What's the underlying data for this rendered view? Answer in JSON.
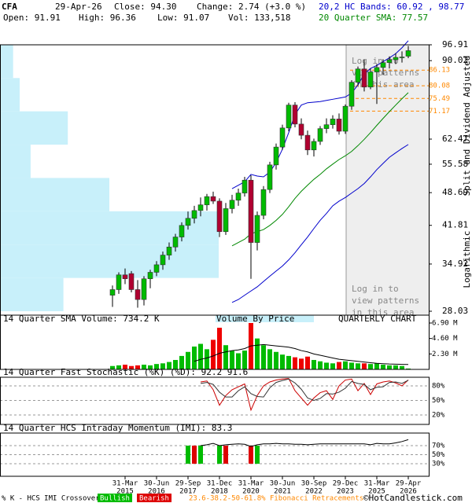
{
  "chart_data": [
    {
      "type": "candlestick",
      "header": {
        "symbol": "CFA",
        "date": "29-Apr-26",
        "close": "Close: 94.30",
        "change": "Change: 2.74 (+3.0 %)",
        "open": "Open: 91.91",
        "high": "High: 96.36",
        "low": "Low: 91.07",
        "volume": "Vol: 133,518",
        "bands": "20,2 HC Bands: 60.92 , 98.77",
        "sma": "20 Quarter SMA: 77.57"
      },
      "side_labels": [
        "Split and Dividend Adjusted",
        "Logarithmic"
      ],
      "notice_lines": [
        "Log in to",
        "view patterns",
        "in this area"
      ],
      "categories": [
        null,
        null,
        "31-Mar",
        null,
        null,
        null,
        null,
        "30-Jun",
        null,
        null,
        null,
        null,
        "29-Sep",
        null,
        null,
        null,
        null,
        "31-Dec",
        null,
        null,
        null,
        null,
        "31-Mar",
        null,
        null,
        null,
        null,
        "30-Jun",
        null,
        null,
        null,
        null,
        "30-Sep",
        null,
        null,
        null,
        null,
        "29-Dec",
        null,
        null,
        null,
        null,
        "31-Mar",
        null,
        null,
        null,
        null,
        "29-Apr"
      ],
      "category_years": [
        null,
        null,
        "2015",
        null,
        null,
        null,
        null,
        "2016",
        null,
        null,
        null,
        null,
        "2017",
        null,
        null,
        null,
        null,
        "2018",
        null,
        null,
        null,
        null,
        "2020",
        null,
        null,
        null,
        null,
        "2021",
        null,
        null,
        null,
        null,
        "2022",
        null,
        null,
        null,
        null,
        "2023",
        null,
        null,
        null,
        null,
        "2025",
        null,
        null,
        null,
        null,
        "2026"
      ],
      "open": [
        30.2,
        31.0,
        33.2,
        33.4,
        31.0,
        29.6,
        32.6,
        33.6,
        34.8,
        36.4,
        37.8,
        39.6,
        41.8,
        43.2,
        44.8,
        46.0,
        47.8,
        46.8,
        40.6,
        45.2,
        47.0,
        48.6,
        51.6,
        38.6,
        43.8,
        49.4,
        55.4,
        60.2,
        65.8,
        73.2,
        67.0,
        63.6,
        59.4,
        61.8,
        65.6,
        66.8,
        68.6,
        64.8,
        72.8,
        81.4,
        86.6,
        79.6,
        85.4,
        87.2,
        89.2,
        90.4,
        91.4,
        91.91
      ],
      "high": [
        31.6,
        33.6,
        34.2,
        33.8,
        32.4,
        33.0,
        34.0,
        35.4,
        37.0,
        38.6,
        40.2,
        42.4,
        44.6,
        45.8,
        47.6,
        48.4,
        48.9,
        47.4,
        46.4,
        48.2,
        49.6,
        52.4,
        52.8,
        44.6,
        50.2,
        56.2,
        61.2,
        66.8,
        74.0,
        74.2,
        68.8,
        65.0,
        62.6,
        66.4,
        68.8,
        69.8,
        70.4,
        73.4,
        82.2,
        87.6,
        90.4,
        86.8,
        88.6,
        90.6,
        91.8,
        93.2,
        94.0,
        96.36
      ],
      "low": [
        28.6,
        30.4,
        31.8,
        30.6,
        28.5,
        28.8,
        31.2,
        33.0,
        34.0,
        35.6,
        37.0,
        38.8,
        41.0,
        42.2,
        43.6,
        44.8,
        46.2,
        39.6,
        40.0,
        44.2,
        45.8,
        47.8,
        32.6,
        37.2,
        43.0,
        48.6,
        54.2,
        59.4,
        64.8,
        66.0,
        62.4,
        58.0,
        57.6,
        60.8,
        64.2,
        65.6,
        63.8,
        64.0,
        71.6,
        80.2,
        78.0,
        78.8,
        73.6,
        84.2,
        86.8,
        88.6,
        89.2,
        91.07
      ],
      "close": [
        31.0,
        33.2,
        32.6,
        31.0,
        29.6,
        32.6,
        33.6,
        34.8,
        36.4,
        37.8,
        39.6,
        41.8,
        43.2,
        44.8,
        46.0,
        47.8,
        46.8,
        40.6,
        45.2,
        47.0,
        48.6,
        51.6,
        38.6,
        43.8,
        49.4,
        55.4,
        60.2,
        65.8,
        73.2,
        67.0,
        63.6,
        59.4,
        61.8,
        65.6,
        66.8,
        68.6,
        64.8,
        72.8,
        81.4,
        86.6,
        79.6,
        85.4,
        87.2,
        89.2,
        90.4,
        91.4,
        91.56,
        94.3
      ],
      "up_color": "#00bb00",
      "down_color": "#b00030",
      "upper_band": {
        "color": "#0000cc",
        "values": [
          null,
          null,
          null,
          null,
          null,
          null,
          null,
          null,
          null,
          null,
          null,
          null,
          null,
          null,
          null,
          null,
          null,
          null,
          null,
          49.6,
          50.4,
          51.2,
          53.0,
          52.6,
          52.4,
          53.6,
          56.0,
          59.6,
          64.4,
          70.0,
          73.2,
          74.0,
          74.2,
          74.4,
          74.8,
          75.2,
          75.6,
          76.0,
          77.4,
          80.4,
          84.6,
          86.8,
          88.0,
          89.6,
          91.2,
          93.0,
          95.6,
          98.77
        ]
      },
      "lower_band": {
        "color": "#0000cc",
        "values": [
          null,
          null,
          null,
          null,
          null,
          null,
          null,
          null,
          null,
          null,
          null,
          null,
          null,
          null,
          null,
          null,
          null,
          null,
          null,
          29.2,
          29.6,
          30.2,
          30.8,
          31.4,
          32.2,
          33.0,
          33.8,
          34.6,
          35.6,
          36.8,
          38.2,
          39.6,
          41.2,
          42.8,
          44.2,
          45.8,
          46.8,
          47.6,
          48.6,
          49.6,
          50.8,
          52.4,
          54.2,
          55.8,
          57.4,
          58.6,
          59.8,
          60.92
        ]
      },
      "sma": {
        "color": "#008800",
        "values": [
          null,
          null,
          null,
          null,
          null,
          null,
          null,
          null,
          null,
          null,
          null,
          null,
          null,
          null,
          null,
          null,
          null,
          null,
          null,
          38.0,
          38.6,
          39.2,
          40.2,
          40.6,
          41.0,
          41.8,
          42.8,
          44.0,
          45.6,
          47.4,
          49.0,
          50.4,
          51.8,
          53.0,
          54.4,
          55.6,
          56.8,
          57.8,
          59.0,
          60.6,
          62.4,
          64.4,
          66.6,
          68.8,
          71.0,
          73.2,
          75.4,
          77.57
        ]
      },
      "volume_by_price": {
        "name": "Volume By Price",
        "color": "#c8f0fa",
        "bins": [
          28.03,
          32.73,
          38.22,
          44.64,
          52.13,
          60.88,
          71.09,
          83.02,
          96.91
        ],
        "values": [
          2.9,
          10.0,
          10.0,
          5.0,
          1.4,
          3.1,
          0.9,
          0.6
        ],
        "xlim": [
          0,
          10
        ]
      },
      "fibonacci": {
        "color": "#ff8800",
        "name": "23.6-38.2-50-61.8% Fibonacci Retracements",
        "levels": [
          86.13,
          80.08,
          75.49,
          71.17
        ]
      },
      "log_scale": true,
      "ylim": [
        28.03,
        96.91
      ],
      "yticks": [
        96.91,
        90.02,
        62.47,
        55.58,
        48.69,
        41.81,
        34.92,
        28.03
      ]
    },
    {
      "type": "bar",
      "title": "14 Quarter SMA Volume: 734.2 K",
      "chart_label": "QUARTERLY CHART",
      "values": [
        0.5,
        0.6,
        0.7,
        0.5,
        0.6,
        0.7,
        0.6,
        0.8,
        0.9,
        1.1,
        1.4,
        2.0,
        2.6,
        3.4,
        3.8,
        3.0,
        4.4,
        6.2,
        3.6,
        2.8,
        2.4,
        2.8,
        6.9,
        4.6,
        3.6,
        3.0,
        2.6,
        2.2,
        2.0,
        1.8,
        1.6,
        1.9,
        1.4,
        1.2,
        1.0,
        0.9,
        1.1,
        1.2,
        1.0,
        0.9,
        0.9,
        0.8,
        0.9,
        0.7,
        0.6,
        0.6,
        0.5,
        0.13
      ],
      "sma": {
        "color": "#000000",
        "values": [
          null,
          null,
          null,
          null,
          null,
          null,
          null,
          null,
          null,
          null,
          null,
          null,
          null,
          1.2,
          1.5,
          1.7,
          2.0,
          2.4,
          2.6,
          2.8,
          2.9,
          3.1,
          3.5,
          3.6,
          3.7,
          3.6,
          3.5,
          3.4,
          3.3,
          3.1,
          2.8,
          2.6,
          2.3,
          2.1,
          1.9,
          1.7,
          1.5,
          1.4,
          1.3,
          1.2,
          1.1,
          1.0,
          0.9,
          0.85,
          0.8,
          0.78,
          0.75,
          0.7342
        ]
      },
      "ylim": [
        0,
        6.9
      ],
      "yticks": [
        {
          "value": 6.9,
          "label": "6.90 M"
        },
        {
          "value": 4.6,
          "label": "4.60 M"
        },
        {
          "value": 2.3,
          "label": "2.30 M"
        }
      ]
    },
    {
      "type": "line",
      "title": "14 Quarter Fast Stochastic (%K) (%D): 92.2  91.6",
      "series": [
        {
          "color": "#cc0000",
          "values": [
            null,
            null,
            null,
            null,
            null,
            null,
            null,
            null,
            null,
            null,
            null,
            null,
            null,
            null,
            88,
            90,
            72,
            40,
            60,
            72,
            78,
            84,
            30,
            60,
            80,
            88,
            92,
            94,
            95,
            70,
            55,
            40,
            55,
            66,
            70,
            52,
            80,
            92,
            94,
            70,
            85,
            62,
            84,
            88,
            90,
            86,
            80,
            92.2
          ]
        },
        {
          "color": "#333333",
          "values": [
            null,
            null,
            null,
            null,
            null,
            null,
            null,
            null,
            null,
            null,
            null,
            null,
            null,
            null,
            85,
            87,
            83,
            67,
            57,
            57,
            70,
            78,
            64,
            58,
            57,
            76,
            87,
            91,
            94,
            86,
            73,
            55,
            50,
            54,
            64,
            63,
            67,
            75,
            89,
            85,
            83,
            72,
            77,
            78,
            87,
            88,
            85,
            91.6
          ]
        }
      ],
      "ylim": [
        0,
        100
      ],
      "yticks": [
        {
          "value": 80,
          "label": "80%"
        },
        {
          "value": 50,
          "label": "50%"
        },
        {
          "value": 20,
          "label": "20%"
        }
      ]
    },
    {
      "type": "line",
      "title": "14 Quarter HCS Intraday Momentum (IMI): 83.3",
      "series": [
        {
          "color": "#000000",
          "values": [
            null,
            null,
            null,
            null,
            null,
            null,
            null,
            null,
            null,
            null,
            null,
            null,
            null,
            null,
            70,
            72,
            75,
            70,
            72,
            73,
            74,
            73,
            68,
            72,
            74,
            74,
            75,
            74,
            74,
            73,
            73,
            72,
            73,
            74,
            74,
            74,
            74,
            74,
            74,
            74,
            74,
            72,
            75,
            74,
            74,
            76,
            79,
            83.3
          ]
        }
      ],
      "crossover": {
        "name": "% K - HCS IMI Crossover,",
        "legend": [
          {
            "name": "Bullish",
            "color": "#00bb00"
          },
          {
            "name": "Bearish",
            "color": "#dd0000"
          }
        ],
        "values": [
          null,
          null,
          null,
          null,
          null,
          null,
          null,
          null,
          null,
          null,
          null,
          null,
          0,
          1,
          0,
          null,
          null,
          0,
          1,
          null,
          null,
          null,
          1,
          0,
          null,
          null,
          null,
          null,
          null,
          null,
          null,
          null,
          null,
          null,
          null,
          null,
          null,
          null,
          null,
          null,
          null,
          null,
          null,
          null,
          null,
          null,
          null,
          null
        ]
      },
      "credit": "©HotCandlestick.com",
      "ylim": [
        0,
        100
      ],
      "yticks": [
        {
          "value": 70,
          "label": "70%"
        },
        {
          "value": 50,
          "label": "50%"
        },
        {
          "value": 30,
          "label": "30%"
        }
      ]
    }
  ]
}
